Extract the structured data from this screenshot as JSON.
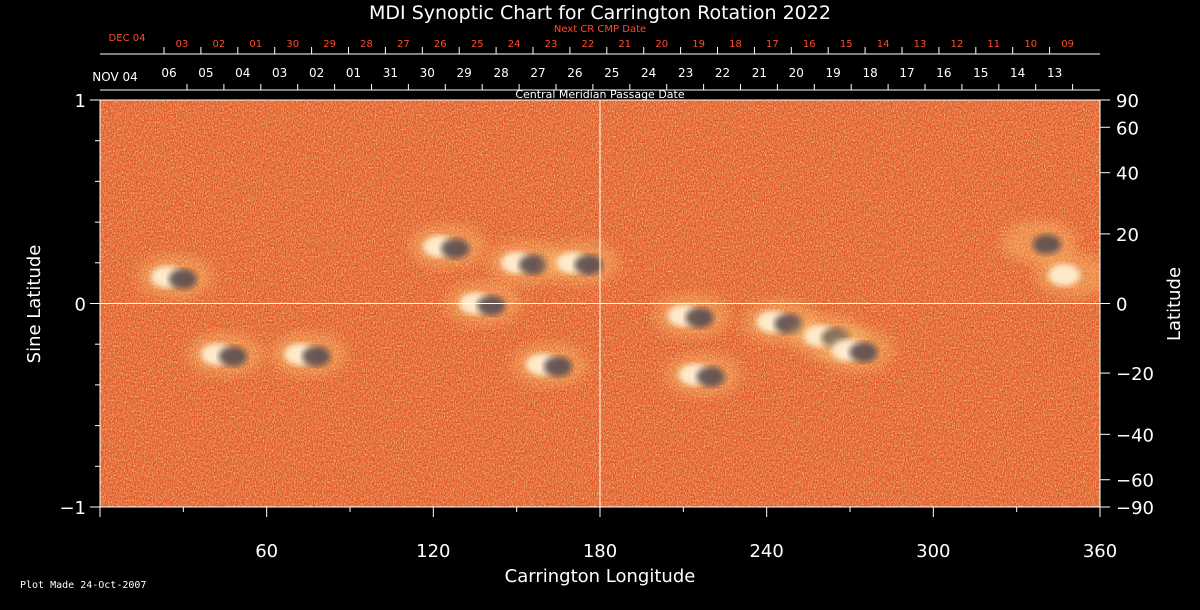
{
  "chart_data": {
    "type": "heatmap",
    "title": "MDI Synoptic Chart for Carrington Rotation 2022",
    "xlabel": "Carrington Longitude",
    "ylabel_left": "Sine Latitude",
    "ylabel_right": "Latitude",
    "xlim": [
      0,
      360
    ],
    "ylim": [
      -1,
      1
    ],
    "x_ticks": [
      60,
      120,
      180,
      240,
      300,
      360
    ],
    "y_ticks_left": [
      {
        "value": 1,
        "label": "1"
      },
      {
        "value": 0,
        "label": "0"
      },
      {
        "value": -1,
        "label": "−1"
      }
    ],
    "y_ticks_right": [
      90,
      60,
      40,
      20,
      0,
      -20,
      -40,
      -60,
      -90
    ],
    "top_axis": {
      "label": "Central Meridian Passage Date",
      "start_label": "NOV 04",
      "dates": [
        "06",
        "05",
        "04",
        "03",
        "02",
        "01",
        "31",
        "30",
        "29",
        "28",
        "27",
        "26",
        "25",
        "24",
        "23",
        "22",
        "21",
        "20",
        "19",
        "18",
        "17",
        "16",
        "15",
        "14",
        "13"
      ]
    },
    "next_cr_axis": {
      "label": "Next CR CMP Date",
      "start_label": "DEC 04",
      "dates": [
        "03",
        "02",
        "01",
        "30",
        "29",
        "28",
        "27",
        "26",
        "25",
        "24",
        "23",
        "22",
        "21",
        "20",
        "19",
        "18",
        "17",
        "16",
        "15",
        "14",
        "13",
        "12",
        "11",
        "10",
        "09"
      ]
    },
    "active_regions": [
      {
        "lon": 27,
        "sinlat": 0.13,
        "polarity": "bipolar"
      },
      {
        "lon": 45,
        "sinlat": -0.25,
        "polarity": "bipolar"
      },
      {
        "lon": 75,
        "sinlat": -0.25,
        "polarity": "bipolar"
      },
      {
        "lon": 125,
        "sinlat": 0.28,
        "polarity": "bipolar"
      },
      {
        "lon": 138,
        "sinlat": 0.0,
        "polarity": "bipolar"
      },
      {
        "lon": 153,
        "sinlat": 0.2,
        "polarity": "bipolar"
      },
      {
        "lon": 162,
        "sinlat": -0.3,
        "polarity": "bipolar"
      },
      {
        "lon": 173,
        "sinlat": 0.2,
        "polarity": "bipolar"
      },
      {
        "lon": 213,
        "sinlat": -0.06,
        "polarity": "bipolar"
      },
      {
        "lon": 217,
        "sinlat": -0.35,
        "polarity": "bipolar"
      },
      {
        "lon": 245,
        "sinlat": -0.09,
        "polarity": "bipolar"
      },
      {
        "lon": 262,
        "sinlat": -0.16,
        "polarity": "bipolar"
      },
      {
        "lon": 272,
        "sinlat": -0.23,
        "polarity": "bipolar"
      },
      {
        "lon": 338,
        "sinlat": 0.3,
        "polarity": "negative"
      },
      {
        "lon": 350,
        "sinlat": 0.14,
        "polarity": "positive"
      }
    ],
    "grid": "crosshair at 180 and 0",
    "colors": {
      "background_field": "#e8501c",
      "positive": "#ffffff",
      "negative": "#0a0a3c",
      "next_cr_text": "#ff4b2b",
      "axis": "#ffffff"
    }
  },
  "footer": {
    "plot_made": "Plot Made 24-Oct-2007"
  }
}
